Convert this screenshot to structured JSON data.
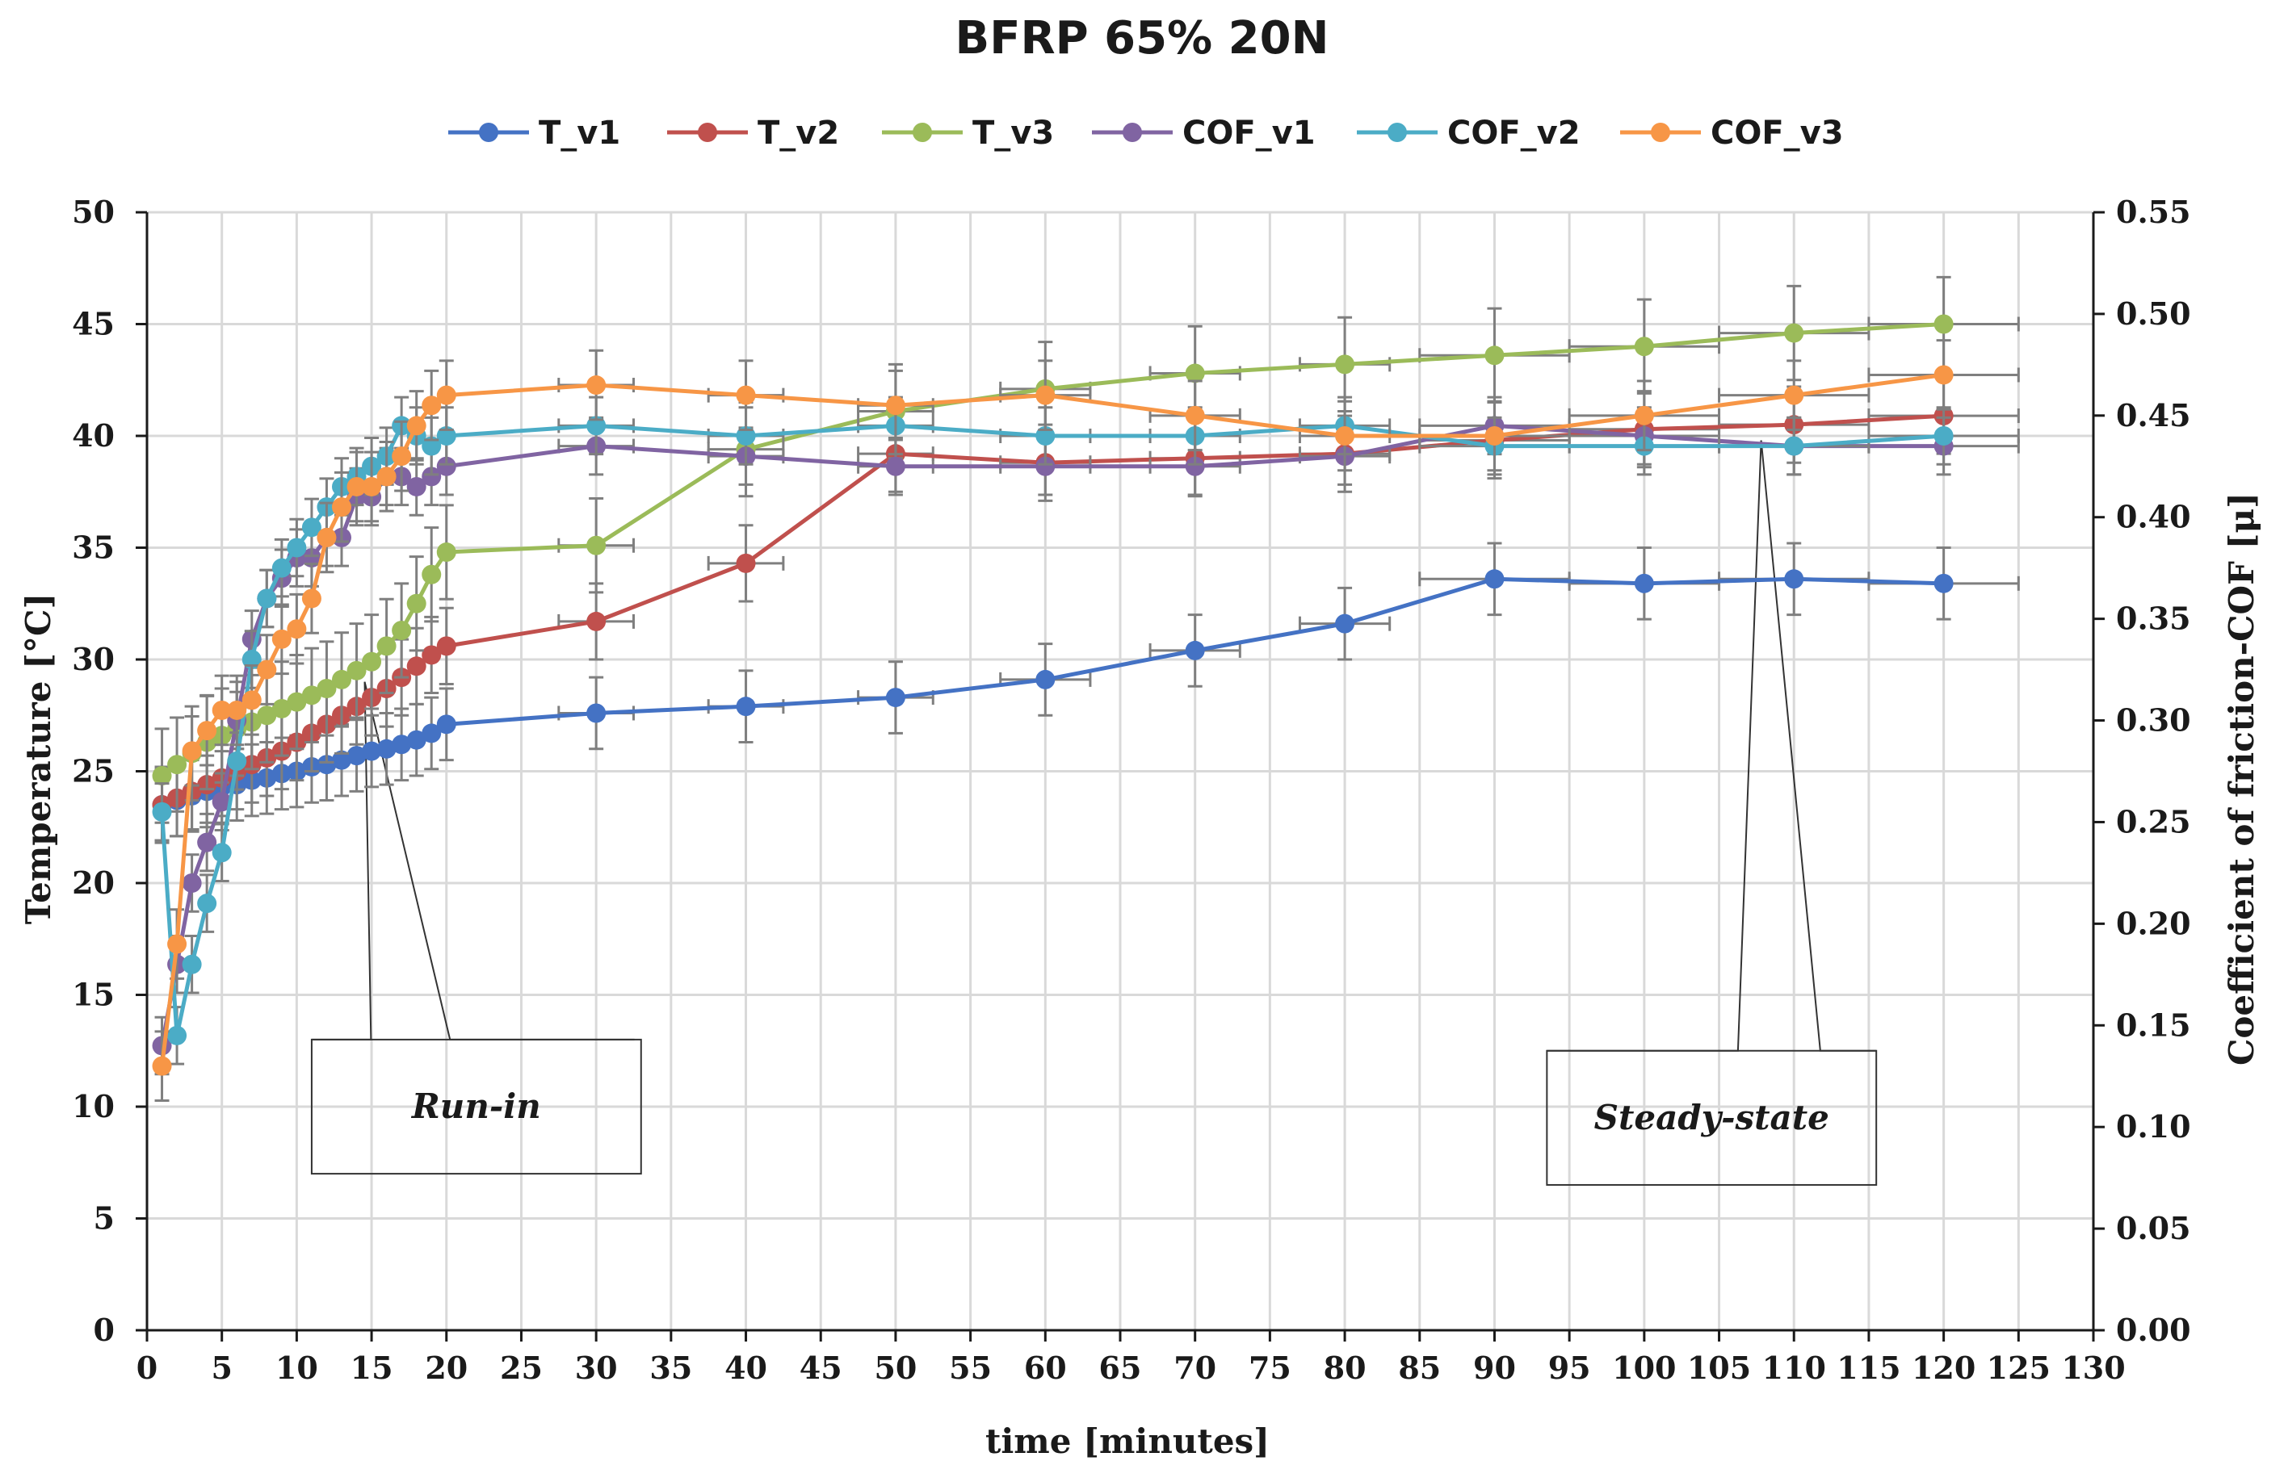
{
  "chart_data": {
    "type": "line",
    "title": "BFRP 65% 20N",
    "xlabel": "time [minutes]",
    "ylabel_left": "Temperature [°C]",
    "ylabel_right": "Coefficient of friction-COF [μ]",
    "xlim": [
      0,
      130
    ],
    "ylim_left": [
      0,
      50
    ],
    "ylim_right": [
      0,
      0.55
    ],
    "x_ticks": [
      "0",
      "5",
      "10",
      "15",
      "20",
      "25",
      "30",
      "35",
      "40",
      "45",
      "50",
      "55",
      "60",
      "65",
      "70",
      "75",
      "80",
      "85",
      "90",
      "95",
      "100",
      "105",
      "110",
      "115",
      "120",
      "125",
      "130"
    ],
    "y_left_ticks": [
      "0",
      "5",
      "10",
      "15",
      "20",
      "25",
      "30",
      "35",
      "40",
      "45",
      "50"
    ],
    "y_right_ticks": [
      "0.00",
      "0.05",
      "0.10",
      "0.15",
      "0.20",
      "0.25",
      "0.30",
      "0.35",
      "0.40",
      "0.45",
      "0.50",
      "0.55"
    ],
    "grid": true,
    "legend_position": "top",
    "series": [
      {
        "name": "T_v1",
        "axis": "left",
        "color": "#4472c4",
        "x": [
          1,
          2,
          3,
          4,
          5,
          6,
          7,
          8,
          9,
          10,
          11,
          12,
          13,
          14,
          15,
          16,
          17,
          18,
          19,
          20,
          30,
          40,
          50,
          60,
          70,
          80,
          90,
          100,
          110,
          120
        ],
        "y": [
          23.5,
          23.7,
          23.9,
          24.1,
          24.3,
          24.4,
          24.6,
          24.7,
          24.9,
          25.0,
          25.2,
          25.3,
          25.5,
          25.7,
          25.9,
          26.0,
          26.2,
          26.4,
          26.7,
          27.1,
          27.6,
          27.9,
          28.3,
          29.1,
          30.4,
          31.6,
          33.6,
          33.4,
          33.6,
          33.4
        ],
        "yerr": 1.6,
        "xerr_last": 5
      },
      {
        "name": "T_v2",
        "axis": "left",
        "color": "#c0504d",
        "x": [
          1,
          2,
          3,
          4,
          5,
          6,
          7,
          8,
          9,
          10,
          11,
          12,
          13,
          14,
          15,
          16,
          17,
          18,
          19,
          20,
          30,
          40,
          50,
          60,
          70,
          80,
          90,
          100,
          110,
          120
        ],
        "y": [
          23.5,
          23.8,
          24.1,
          24.4,
          24.7,
          25.0,
          25.3,
          25.6,
          25.9,
          26.3,
          26.7,
          27.1,
          27.5,
          27.9,
          28.3,
          28.7,
          29.2,
          29.7,
          30.2,
          30.6,
          31.7,
          34.3,
          39.2,
          38.8,
          39.0,
          39.2,
          39.8,
          40.3,
          40.5,
          40.9
        ],
        "yerr": 1.7,
        "xerr_last": 5
      },
      {
        "name": "T_v3",
        "axis": "left",
        "color": "#9bbb59",
        "x": [
          1,
          2,
          3,
          4,
          5,
          6,
          7,
          8,
          9,
          10,
          11,
          12,
          13,
          14,
          15,
          16,
          17,
          18,
          19,
          20,
          30,
          40,
          50,
          60,
          70,
          80,
          90,
          100,
          110,
          120
        ],
        "y": [
          24.8,
          25.3,
          25.8,
          26.3,
          26.6,
          26.9,
          27.2,
          27.5,
          27.8,
          28.1,
          28.4,
          28.7,
          29.1,
          29.5,
          29.9,
          30.6,
          31.3,
          32.5,
          33.8,
          34.8,
          35.1,
          39.4,
          41.1,
          42.1,
          42.8,
          43.2,
          43.6,
          44.0,
          44.6,
          45.0
        ],
        "yerr": 2.1,
        "xerr_last": 5
      },
      {
        "name": "COF_v1",
        "axis": "right",
        "color": "#8064a2",
        "x": [
          1,
          2,
          3,
          4,
          5,
          6,
          7,
          8,
          9,
          10,
          11,
          12,
          13,
          14,
          15,
          16,
          17,
          18,
          19,
          20,
          30,
          40,
          50,
          60,
          70,
          80,
          90,
          100,
          110,
          120
        ],
        "y": [
          0.14,
          0.18,
          0.22,
          0.24,
          0.26,
          0.3,
          0.34,
          0.36,
          0.37,
          0.38,
          0.38,
          0.39,
          0.39,
          0.41,
          0.41,
          0.42,
          0.42,
          0.415,
          0.42,
          0.425,
          0.435,
          0.43,
          0.425,
          0.425,
          0.425,
          0.43,
          0.445,
          0.44,
          0.435,
          0.435
        ],
        "yerr": 0.014,
        "xerr_last": 5
      },
      {
        "name": "COF_v2",
        "axis": "right",
        "color": "#4bacc6",
        "x": [
          1,
          2,
          3,
          4,
          5,
          6,
          7,
          8,
          9,
          10,
          11,
          12,
          13,
          14,
          15,
          16,
          17,
          18,
          19,
          20,
          30,
          40,
          50,
          60,
          70,
          80,
          90,
          100,
          110,
          120
        ],
        "y": [
          0.255,
          0.145,
          0.18,
          0.21,
          0.235,
          0.28,
          0.33,
          0.36,
          0.375,
          0.385,
          0.395,
          0.405,
          0.415,
          0.42,
          0.425,
          0.43,
          0.445,
          0.44,
          0.435,
          0.44,
          0.445,
          0.44,
          0.445,
          0.44,
          0.44,
          0.445,
          0.435,
          0.435,
          0.435,
          0.44
        ],
        "yerr": 0.014,
        "xerr_last": 5
      },
      {
        "name": "COF_v3",
        "axis": "right",
        "color": "#f79646",
        "x": [
          1,
          2,
          3,
          4,
          5,
          6,
          7,
          8,
          9,
          10,
          11,
          12,
          13,
          14,
          15,
          16,
          17,
          18,
          19,
          20,
          30,
          40,
          50,
          60,
          70,
          80,
          90,
          100,
          110,
          120
        ],
        "y": [
          0.13,
          0.19,
          0.285,
          0.295,
          0.305,
          0.305,
          0.31,
          0.325,
          0.34,
          0.345,
          0.36,
          0.39,
          0.405,
          0.415,
          0.415,
          0.42,
          0.43,
          0.445,
          0.455,
          0.46,
          0.465,
          0.46,
          0.455,
          0.46,
          0.45,
          0.44,
          0.44,
          0.45,
          0.46,
          0.47
        ],
        "yerr": 0.017,
        "xerr_last": 5
      }
    ],
    "annotations": [
      {
        "text": "Run-in",
        "box_x": [
          11,
          33
        ],
        "box_y": [
          7,
          13
        ],
        "pointers": [
          [
            14,
            29
          ],
          [
            14,
            29
          ]
        ]
      },
      {
        "text": "Steady-state",
        "box_x": [
          93.5,
          115.5
        ],
        "box_y": [
          6.5,
          12.5
        ],
        "pointers": [
          [
            107,
            39.8
          ],
          [
            107,
            39.8
          ]
        ]
      }
    ]
  }
}
